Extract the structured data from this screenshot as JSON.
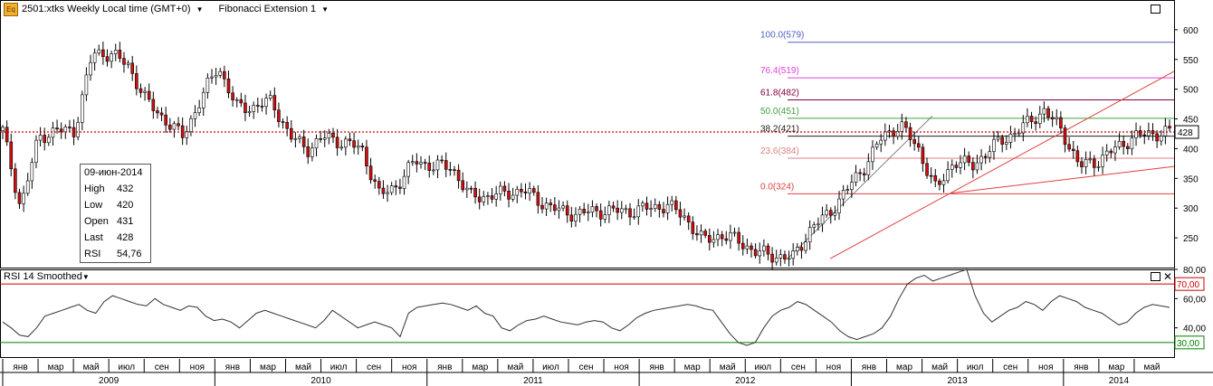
{
  "header": {
    "symbol_badge": "Eq",
    "instrument": "2501:xtks Weekly Local time (GMT+0)",
    "study": "Fibonacci Extension 1"
  },
  "rsi_panel": {
    "title": "RSI 14 Smoothed"
  },
  "info_box": {
    "date": "09-июн-2014",
    "rows": [
      {
        "label": "High",
        "value": "432"
      },
      {
        "label": "Low",
        "value": "420"
      },
      {
        "label": "Open",
        "value": "431"
      },
      {
        "label": "Last",
        "value": "428"
      },
      {
        "label": "RSI",
        "value": "54,76"
      }
    ]
  },
  "colors": {
    "up": "#ffffff",
    "down": "#d01010",
    "wick": "#000000",
    "last_price": "#cc0000",
    "fib_100": "#5060c0",
    "fib_764": "#e040e0",
    "fib_618": "#800040",
    "fib_50": "#40a040",
    "fib_382": "#202020",
    "fib_236": "#e08080",
    "fib_0": "#e04040",
    "rsi_line": "#333333",
    "rsi_70": "#cc0000",
    "rsi_30": "#008000"
  },
  "chart_data": [
    {
      "type": "candlestick",
      "title": "2501:xtks Weekly Local time (GMT+0)",
      "ylim": [
        200,
        650
      ],
      "y_ticks": [
        250,
        300,
        350,
        400,
        450,
        500,
        550,
        600
      ],
      "last_price": 428,
      "fibonacci_levels": [
        {
          "label": "100.0(579)",
          "value": 579
        },
        {
          "label": "76.4(519)",
          "value": 519
        },
        {
          "label": "61.8(482)",
          "value": 482
        },
        {
          "label": "50.0(451)",
          "value": 451
        },
        {
          "label": "38.2(421)",
          "value": 421
        },
        {
          "label": "23.6(384)",
          "value": 384
        },
        {
          "label": "0.0(324)",
          "value": 324
        }
      ],
      "x_month_labels": [
        "янв",
        "мар",
        "май",
        "июл",
        "сен",
        "ноя",
        "янв",
        "мар",
        "май",
        "июл",
        "сен",
        "ноя",
        "янв",
        "мар",
        "май",
        "июл",
        "сен",
        "ноя",
        "янв",
        "мар",
        "май",
        "июл",
        "сен",
        "ноя",
        "янв",
        "мар",
        "май",
        "июл",
        "сен",
        "ноя",
        "янв",
        "мар",
        "май"
      ],
      "x_year_labels": [
        "2009",
        "2010",
        "2011",
        "2012",
        "2013",
        "2014"
      ],
      "close_path": [
        [
          "2009-01",
          430
        ],
        [
          "2009-02",
          300
        ],
        [
          "2009-03",
          420
        ],
        [
          "2009-04",
          430
        ],
        [
          "2009-05",
          430
        ],
        [
          "2009-06",
          560
        ],
        [
          "2009-07",
          560
        ],
        [
          "2009-08",
          540
        ],
        [
          "2009-09",
          480
        ],
        [
          "2009-10",
          450
        ],
        [
          "2009-11",
          420
        ],
        [
          "2009-12",
          480
        ],
        [
          "2010-01",
          540
        ],
        [
          "2010-02",
          470
        ],
        [
          "2010-03",
          470
        ],
        [
          "2010-04",
          480
        ],
        [
          "2010-05",
          420
        ],
        [
          "2010-06",
          400
        ],
        [
          "2010-07",
          420
        ],
        [
          "2010-08",
          410
        ],
        [
          "2010-09",
          400
        ],
        [
          "2010-10",
          320
        ],
        [
          "2010-11",
          340
        ],
        [
          "2010-12",
          380
        ],
        [
          "2011-01",
          370
        ],
        [
          "2011-02",
          370
        ],
        [
          "2011-03",
          320
        ],
        [
          "2011-04",
          320
        ],
        [
          "2011-05",
          325
        ],
        [
          "2011-06",
          330
        ],
        [
          "2011-07",
          310
        ],
        [
          "2011-08",
          295
        ],
        [
          "2011-09",
          290
        ],
        [
          "2011-10",
          295
        ],
        [
          "2011-11",
          295
        ],
        [
          "2011-12",
          295
        ],
        [
          "2012-01",
          300
        ],
        [
          "2012-02",
          305
        ],
        [
          "2012-03",
          285
        ],
        [
          "2012-04",
          245
        ],
        [
          "2012-05",
          255
        ],
        [
          "2012-06",
          245
        ],
        [
          "2012-07",
          225
        ],
        [
          "2012-08",
          220
        ],
        [
          "2012-09",
          215
        ],
        [
          "2012-10",
          265
        ],
        [
          "2012-11",
          290
        ],
        [
          "2012-12",
          330
        ],
        [
          "2013-01",
          370
        ],
        [
          "2013-02",
          420
        ],
        [
          "2013-03",
          440
        ],
        [
          "2013-04",
          400
        ],
        [
          "2013-05",
          330
        ],
        [
          "2013-06",
          380
        ],
        [
          "2013-07",
          370
        ],
        [
          "2013-08",
          400
        ],
        [
          "2013-09",
          420
        ],
        [
          "2013-10",
          440
        ],
        [
          "2013-11",
          465
        ],
        [
          "2013-12",
          430
        ],
        [
          "2014-01",
          370
        ],
        [
          "2014-02",
          380
        ],
        [
          "2014-03",
          400
        ],
        [
          "2014-04",
          420
        ],
        [
          "2014-05",
          425
        ],
        [
          "2014-06",
          428
        ]
      ]
    },
    {
      "type": "line",
      "title": "RSI 14 Smoothed",
      "ylim": [
        20,
        80
      ],
      "y_ticks": [
        30,
        40,
        60,
        70,
        80
      ],
      "reference_levels": [
        70,
        30
      ],
      "values": [
        44,
        40,
        35,
        34,
        40,
        48,
        50,
        52,
        54,
        56,
        52,
        50,
        58,
        62,
        60,
        58,
        56,
        55,
        60,
        56,
        54,
        52,
        55,
        54,
        48,
        45,
        46,
        44,
        40,
        45,
        50,
        52,
        50,
        48,
        46,
        44,
        42,
        40,
        45,
        52,
        48,
        44,
        40,
        42,
        44,
        42,
        40,
        34,
        50,
        54,
        55,
        56,
        57,
        56,
        54,
        52,
        55,
        50,
        48,
        40,
        38,
        42,
        45,
        46,
        48,
        46,
        44,
        43,
        42,
        44,
        45,
        44,
        40,
        38,
        42,
        47,
        50,
        52,
        53,
        54,
        55,
        56,
        55,
        53,
        52,
        44,
        36,
        30,
        28,
        30,
        40,
        48,
        52,
        54,
        58,
        56,
        52,
        48,
        44,
        38,
        34,
        32,
        34,
        36,
        40,
        48,
        60,
        70,
        74,
        76,
        72,
        74,
        76,
        78,
        80,
        62,
        50,
        44,
        48,
        52,
        54,
        58,
        56,
        52,
        58,
        62,
        60,
        58,
        54,
        52,
        50,
        46,
        42,
        44,
        50,
        54,
        56,
        55,
        54
      ],
      "last_value": 54.76
    }
  ]
}
